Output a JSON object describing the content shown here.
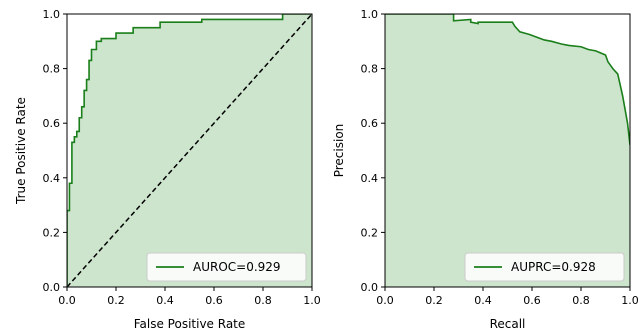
{
  "colors": {
    "curve": "#1a7f1a",
    "fill": "#cde4cd",
    "diag": "#000000"
  },
  "chart_data": [
    {
      "type": "line",
      "xlabel": "False Positive Rate",
      "ylabel": "True Positive Rate",
      "xlim": [
        0,
        1
      ],
      "ylim": [
        0,
        1
      ],
      "xticks": [
        "0.0",
        "0.2",
        "0.4",
        "0.6",
        "0.8",
        "1.0"
      ],
      "yticks": [
        "0.0",
        "0.2",
        "0.4",
        "0.6",
        "0.8",
        "1.0"
      ],
      "legend": "AUROC=0.929",
      "legend_position": "lower-right",
      "diagonal": true,
      "series": [
        {
          "name": "AUROC=0.929",
          "x": [
            0.0,
            0.0,
            0.01,
            0.01,
            0.02,
            0.02,
            0.03,
            0.03,
            0.04,
            0.04,
            0.05,
            0.05,
            0.06,
            0.06,
            0.07,
            0.07,
            0.08,
            0.08,
            0.09,
            0.09,
            0.1,
            0.1,
            0.12,
            0.12,
            0.14,
            0.14,
            0.2,
            0.2,
            0.27,
            0.27,
            0.38,
            0.38,
            0.55,
            0.55,
            0.88,
            0.88,
            1.0
          ],
          "y": [
            0.0,
            0.28,
            0.28,
            0.38,
            0.38,
            0.53,
            0.53,
            0.55,
            0.55,
            0.57,
            0.57,
            0.62,
            0.62,
            0.66,
            0.66,
            0.72,
            0.72,
            0.76,
            0.76,
            0.83,
            0.83,
            0.87,
            0.87,
            0.9,
            0.9,
            0.91,
            0.91,
            0.93,
            0.93,
            0.95,
            0.95,
            0.97,
            0.97,
            0.98,
            0.98,
            1.0,
            1.0
          ]
        }
      ]
    },
    {
      "type": "line",
      "xlabel": "Recall",
      "ylabel": "Precision",
      "xlim": [
        0,
        1
      ],
      "ylim": [
        0,
        1
      ],
      "xticks": [
        "0.0",
        "0.2",
        "0.4",
        "0.6",
        "0.8",
        "1.0"
      ],
      "yticks": [
        "0.0",
        "0.2",
        "0.4",
        "0.6",
        "0.8",
        "1.0"
      ],
      "legend": "AUPRC=0.928",
      "legend_position": "lower-right",
      "diagonal": false,
      "series": [
        {
          "name": "AUPRC=0.928",
          "x": [
            0.0,
            0.28,
            0.28,
            0.35,
            0.35,
            0.38,
            0.38,
            0.52,
            0.53,
            0.54,
            0.55,
            0.57,
            0.59,
            0.62,
            0.65,
            0.68,
            0.72,
            0.75,
            0.8,
            0.83,
            0.86,
            0.9,
            0.91,
            0.93,
            0.95,
            0.96,
            0.97,
            0.98,
            0.99,
            1.0
          ],
          "y": [
            1.0,
            1.0,
            0.975,
            0.98,
            0.97,
            0.965,
            0.97,
            0.97,
            0.955,
            0.945,
            0.935,
            0.93,
            0.925,
            0.915,
            0.905,
            0.9,
            0.89,
            0.885,
            0.88,
            0.87,
            0.865,
            0.85,
            0.825,
            0.8,
            0.78,
            0.74,
            0.7,
            0.65,
            0.6,
            0.52
          ]
        }
      ]
    }
  ]
}
